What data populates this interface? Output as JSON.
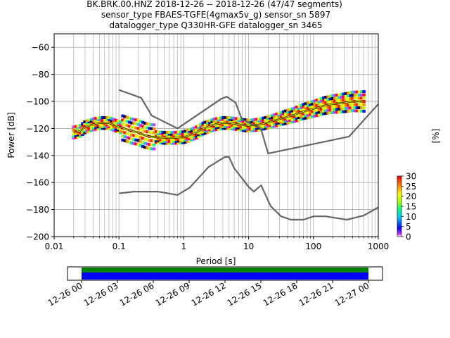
{
  "title_lines": [
    "BK.BRK.00.HNZ   2018-12-26 -- 2018-12-26  (47/47 segments)",
    "sensor_type FBAES-TGFE(4gmax5v_g) sensor_sn 5897",
    "datalogger_type Q330HR-GFE datalogger_sn 3465"
  ],
  "chart_data": {
    "type": "line",
    "xlabel": "Period [s]",
    "ylabel": "Power [dB]",
    "xscale": "log",
    "xlim": [
      0.01,
      1000
    ],
    "ylim": [
      -200,
      -50
    ],
    "x_ticks": [
      0.01,
      0.1,
      1,
      10,
      100,
      1000
    ],
    "x_tick_labels": [
      "0.01",
      "0.1",
      "1",
      "10",
      "100",
      "1000"
    ],
    "y_ticks": [
      -200,
      -180,
      -160,
      -140,
      -120,
      -100,
      -80,
      -60
    ],
    "y_tick_labels": [
      "−200",
      "−180",
      "−160",
      "−140",
      "−120",
      "−100",
      "−80",
      "−60"
    ],
    "grid": true,
    "noise_models": {
      "high": {
        "x": [
          0.1,
          0.22,
          0.32,
          0.8,
          3.8,
          4.6,
          6.3,
          7.9,
          15.4,
          20,
          354.8,
          10000
        ],
        "y": [
          -91.5,
          -97.4,
          -110.5,
          -120,
          -98,
          -96.5,
          -101,
          -113.5,
          -120,
          -138.5,
          -126,
          -48.5
        ]
      },
      "low": {
        "x": [
          0.1,
          0.17,
          0.4,
          0.8,
          1.24,
          2.4,
          4.3,
          5,
          6,
          10,
          12,
          15.6,
          21.9,
          31.6,
          45,
          70,
          101,
          154,
          328,
          600,
          10000
        ],
        "y": [
          -168,
          -166.7,
          -166.7,
          -169.2,
          -163.7,
          -148.6,
          -141.1,
          -141.1,
          -149.5,
          -163.2,
          -166.7,
          -162.1,
          -177.5,
          -185,
          -187.5,
          -187.5,
          -185,
          -185,
          -187.5,
          -184.4,
          -151.2
        ]
      }
    },
    "series": [
      {
        "x": [
          0.02,
          0.025,
          0.03,
          0.04,
          0.05,
          0.07,
          0.09,
          0.12,
          0.16,
          0.2,
          0.25,
          0.3,
          0.4,
          0.5,
          0.7,
          1,
          1.5,
          2,
          3,
          4,
          5,
          7,
          10,
          15,
          20,
          30,
          50,
          70,
          100,
          150,
          200,
          300,
          400,
          600
        ],
        "y": [
          -123,
          -122,
          -119,
          -117,
          -116,
          -116,
          -118,
          -120,
          -122,
          -123,
          -125,
          -126,
          -126.5,
          -127,
          -127,
          -126.5,
          -123.5,
          -120,
          -117,
          -116,
          -116,
          -117,
          -118,
          -117,
          -115.5,
          -113,
          -110,
          -107.5,
          -105.5,
          -103,
          -102,
          -101,
          -100,
          -100
        ]
      }
    ],
    "colorbar": {
      "label": "[%]",
      "min": 0,
      "max": 30,
      "ticks": [
        0,
        5,
        10,
        15,
        20,
        25,
        30
      ]
    }
  },
  "timeline": {
    "tick_labels": [
      "12-26 00",
      "12-26 03",
      "12-26 06",
      "12-26 09",
      "12-26 12",
      "12-26 15",
      "12-26 18",
      "12-26 21",
      "12-27 00"
    ],
    "coverage_color": "#0000ff",
    "gap_color": "#008000"
  },
  "colors": {
    "noise_model": "#666666",
    "grid": "#b0b0b0",
    "mode_line": "#000000",
    "mean_line": "#ffff00"
  }
}
